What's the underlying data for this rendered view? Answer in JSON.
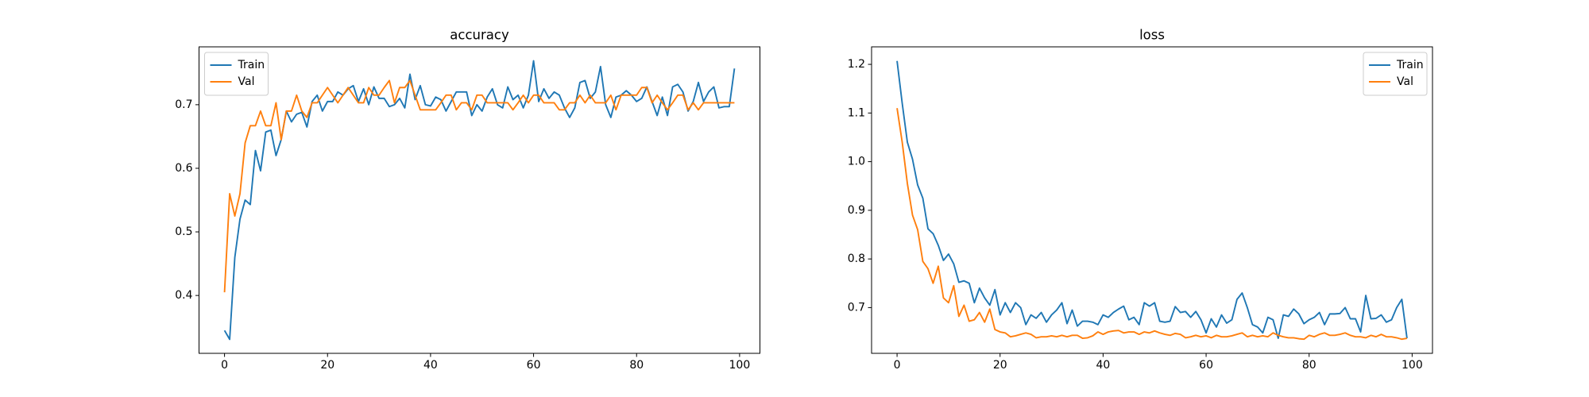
{
  "chart_data": [
    {
      "type": "line",
      "title": "accuracy",
      "legend": "upper left",
      "x": [
        0,
        1,
        2,
        3,
        4,
        5,
        6,
        7,
        8,
        9,
        10,
        11,
        12,
        13,
        14,
        15,
        16,
        17,
        18,
        19,
        20,
        21,
        22,
        23,
        24,
        25,
        26,
        27,
        28,
        29,
        30,
        31,
        32,
        33,
        34,
        35,
        36,
        37,
        38,
        39,
        40,
        41,
        42,
        43,
        44,
        45,
        46,
        47,
        48,
        49,
        50,
        51,
        52,
        53,
        54,
        55,
        56,
        57,
        58,
        59,
        60,
        61,
        62,
        63,
        64,
        65,
        66,
        67,
        68,
        69,
        70,
        71,
        72,
        73,
        74,
        75,
        76,
        77,
        78,
        79,
        80,
        81,
        82,
        83,
        84,
        85,
        86,
        87,
        88,
        89,
        90,
        91,
        92,
        93,
        94,
        95,
        96,
        97,
        98,
        99
      ],
      "xlim": [
        -4.95,
        103.95
      ],
      "xticks": [
        0,
        20,
        40,
        60,
        80,
        100
      ],
      "ylim": [
        0.309,
        0.791
      ],
      "yticks": [
        0.4,
        0.5,
        0.6,
        0.7
      ],
      "series": [
        {
          "name": "Train",
          "color": "#1f77b4",
          "values": [
            0.345,
            0.331,
            0.46,
            0.52,
            0.55,
            0.543,
            0.628,
            0.596,
            0.657,
            0.66,
            0.62,
            0.645,
            0.69,
            0.673,
            0.685,
            0.688,
            0.665,
            0.705,
            0.715,
            0.69,
            0.705,
            0.705,
            0.72,
            0.715,
            0.725,
            0.73,
            0.705,
            0.725,
            0.7,
            0.728,
            0.71,
            0.71,
            0.697,
            0.7,
            0.71,
            0.695,
            0.748,
            0.708,
            0.73,
            0.7,
            0.698,
            0.712,
            0.708,
            0.69,
            0.705,
            0.72,
            0.72,
            0.72,
            0.683,
            0.7,
            0.69,
            0.712,
            0.725,
            0.7,
            0.695,
            0.728,
            0.708,
            0.715,
            0.695,
            0.715,
            0.769,
            0.705,
            0.725,
            0.71,
            0.72,
            0.715,
            0.695,
            0.68,
            0.695,
            0.735,
            0.738,
            0.71,
            0.72,
            0.76,
            0.7,
            0.68,
            0.712,
            0.715,
            0.722,
            0.715,
            0.705,
            0.71,
            0.728,
            0.705,
            0.683,
            0.712,
            0.683,
            0.728,
            0.732,
            0.72,
            0.69,
            0.705,
            0.735,
            0.705,
            0.72,
            0.728,
            0.695,
            0.697,
            0.697,
            0.757
          ]
        },
        {
          "name": "Val",
          "color": "#ff7f0e",
          "values": [
            0.405,
            0.56,
            0.525,
            0.56,
            0.64,
            0.667,
            0.667,
            0.69,
            0.667,
            0.667,
            0.703,
            0.645,
            0.69,
            0.69,
            0.715,
            0.69,
            0.68,
            0.703,
            0.703,
            0.715,
            0.727,
            0.715,
            0.703,
            0.715,
            0.727,
            0.715,
            0.703,
            0.703,
            0.727,
            0.715,
            0.715,
            0.727,
            0.738,
            0.703,
            0.727,
            0.727,
            0.738,
            0.715,
            0.692,
            0.692,
            0.692,
            0.692,
            0.703,
            0.715,
            0.715,
            0.692,
            0.703,
            0.703,
            0.692,
            0.715,
            0.715,
            0.703,
            0.703,
            0.703,
            0.703,
            0.703,
            0.692,
            0.703,
            0.715,
            0.703,
            0.715,
            0.715,
            0.703,
            0.703,
            0.703,
            0.692,
            0.692,
            0.703,
            0.703,
            0.715,
            0.703,
            0.715,
            0.703,
            0.703,
            0.703,
            0.715,
            0.692,
            0.715,
            0.715,
            0.715,
            0.715,
            0.727,
            0.727,
            0.703,
            0.715,
            0.703,
            0.692,
            0.703,
            0.715,
            0.715,
            0.692,
            0.703,
            0.692,
            0.703,
            0.703,
            0.703,
            0.703,
            0.703,
            0.703,
            0.703
          ]
        }
      ]
    },
    {
      "type": "line",
      "title": "loss",
      "legend": "upper right",
      "x": [
        0,
        1,
        2,
        3,
        4,
        5,
        6,
        7,
        8,
        9,
        10,
        11,
        12,
        13,
        14,
        15,
        16,
        17,
        18,
        19,
        20,
        21,
        22,
        23,
        24,
        25,
        26,
        27,
        28,
        29,
        30,
        31,
        32,
        33,
        34,
        35,
        36,
        37,
        38,
        39,
        40,
        41,
        42,
        43,
        44,
        45,
        46,
        47,
        48,
        49,
        50,
        51,
        52,
        53,
        54,
        55,
        56,
        57,
        58,
        59,
        60,
        61,
        62,
        63,
        64,
        65,
        66,
        67,
        68,
        69,
        70,
        71,
        72,
        73,
        74,
        75,
        76,
        77,
        78,
        79,
        80,
        81,
        82,
        83,
        84,
        85,
        86,
        87,
        88,
        89,
        90,
        91,
        92,
        93,
        94,
        95,
        96,
        97,
        98,
        99
      ],
      "xlim": [
        -4.95,
        103.95
      ],
      "xticks": [
        0,
        20,
        40,
        60,
        80,
        100
      ],
      "ylim": [
        0.606,
        1.236
      ],
      "yticks": [
        0.7,
        0.8,
        0.9,
        {
          "value": 1,
          "label": "1.0"
        },
        1.1,
        1.2
      ],
      "series": [
        {
          "name": "Train",
          "color": "#1f77b4",
          "values": [
            1.207,
            1.12,
            1.04,
            1.005,
            0.952,
            0.925,
            0.862,
            0.852,
            0.828,
            0.797,
            0.81,
            0.79,
            0.752,
            0.755,
            0.75,
            0.71,
            0.74,
            0.72,
            0.705,
            0.737,
            0.685,
            0.71,
            0.69,
            0.71,
            0.7,
            0.665,
            0.685,
            0.678,
            0.69,
            0.67,
            0.685,
            0.695,
            0.71,
            0.667,
            0.695,
            0.662,
            0.672,
            0.672,
            0.67,
            0.665,
            0.685,
            0.68,
            0.69,
            0.697,
            0.703,
            0.675,
            0.68,
            0.665,
            0.71,
            0.703,
            0.71,
            0.672,
            0.67,
            0.672,
            0.702,
            0.69,
            0.692,
            0.68,
            0.692,
            0.675,
            0.648,
            0.677,
            0.66,
            0.685,
            0.668,
            0.675,
            0.717,
            0.73,
            0.7,
            0.665,
            0.66,
            0.648,
            0.68,
            0.675,
            0.637,
            0.685,
            0.682,
            0.697,
            0.687,
            0.667,
            0.675,
            0.68,
            0.69,
            0.665,
            0.687,
            0.687,
            0.688,
            0.7,
            0.677,
            0.677,
            0.65,
            0.725,
            0.677,
            0.678,
            0.685,
            0.67,
            0.675,
            0.7,
            0.717,
            0.637
          ]
        },
        {
          "name": "Val",
          "color": "#ff7f0e",
          "values": [
            1.11,
            1.04,
            0.955,
            0.89,
            0.86,
            0.795,
            0.78,
            0.75,
            0.785,
            0.72,
            0.71,
            0.745,
            0.682,
            0.705,
            0.672,
            0.675,
            0.69,
            0.67,
            0.697,
            0.655,
            0.65,
            0.648,
            0.64,
            0.642,
            0.645,
            0.648,
            0.645,
            0.638,
            0.64,
            0.64,
            0.642,
            0.64,
            0.643,
            0.64,
            0.643,
            0.643,
            0.637,
            0.638,
            0.642,
            0.65,
            0.645,
            0.65,
            0.652,
            0.653,
            0.648,
            0.65,
            0.65,
            0.645,
            0.65,
            0.648,
            0.652,
            0.648,
            0.645,
            0.643,
            0.647,
            0.645,
            0.638,
            0.64,
            0.643,
            0.64,
            0.642,
            0.638,
            0.643,
            0.64,
            0.64,
            0.642,
            0.645,
            0.648,
            0.64,
            0.643,
            0.64,
            0.642,
            0.64,
            0.648,
            0.643,
            0.64,
            0.638,
            0.638,
            0.636,
            0.635,
            0.643,
            0.64,
            0.645,
            0.648,
            0.643,
            0.643,
            0.645,
            0.648,
            0.643,
            0.64,
            0.64,
            0.638,
            0.643,
            0.64,
            0.645,
            0.64,
            0.64,
            0.638,
            0.635,
            0.637
          ]
        }
      ]
    }
  ]
}
